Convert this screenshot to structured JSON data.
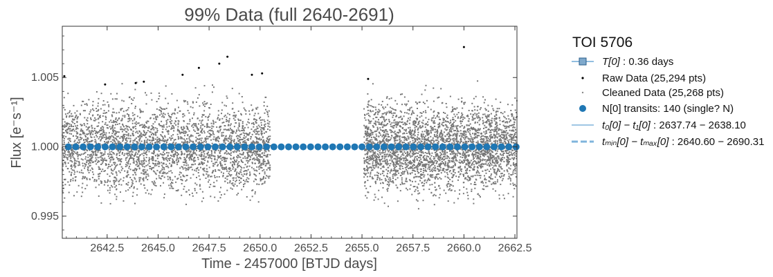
{
  "chart_data": {
    "type": "scatter",
    "title": "99% Data (full 2640-2691)",
    "xlabel": "Time - 2457000 [BTJD days]",
    "ylabel": "Flux [e⁻s⁻¹]",
    "xlim": [
      2640.3,
      2662.6
    ],
    "ylim": [
      0.9934,
      1.0087
    ],
    "x_ticks": [
      2642.5,
      2645.0,
      2647.5,
      2650.0,
      2652.5,
      2655.0,
      2657.5,
      2660.0,
      2662.5
    ],
    "x_tick_labels": [
      "2642.5",
      "2645.0",
      "2647.5",
      "2650.0",
      "2652.5",
      "2655.0",
      "2657.5",
      "2660.0",
      "2662.5"
    ],
    "y_ticks": [
      0.995,
      1.0,
      1.005
    ],
    "y_tick_labels": [
      "0.995",
      "1.000",
      "1.005"
    ],
    "grid": false,
    "legend_placement": "outside-right",
    "data_segments": [
      {
        "x_start": 2640.3,
        "x_end": 2650.5
      },
      {
        "x_start": 2655.1,
        "x_end": 2662.6
      }
    ],
    "transit_period_days": 0.36,
    "transit_first_x": 2640.6,
    "transit_flux": 1.0,
    "raw_outliers": [
      {
        "x": 2640.4,
        "y": 1.0051
      },
      {
        "x": 2642.4,
        "y": 1.0045
      },
      {
        "x": 2643.9,
        "y": 1.0046
      },
      {
        "x": 2644.3,
        "y": 1.0047
      },
      {
        "x": 2646.2,
        "y": 1.0052
      },
      {
        "x": 2647.0,
        "y": 1.0057
      },
      {
        "x": 2648.0,
        "y": 1.006
      },
      {
        "x": 2648.4,
        "y": 1.0065
      },
      {
        "x": 2649.6,
        "y": 1.0052
      },
      {
        "x": 2650.1,
        "y": 1.0053
      },
      {
        "x": 2660.0,
        "y": 1.0072
      },
      {
        "x": 2655.3,
        "y": 1.0049
      }
    ],
    "series": [
      {
        "name": "Raw Data (25,294 pts)",
        "color": "#000000"
      },
      {
        "name": "Cleaned Data (25,268 pts)",
        "color": "#777777"
      },
      {
        "name": "N[0] transits: 140 (single? N)",
        "color": "#1f77b4"
      }
    ],
    "legend": {
      "title": "TOI 5706",
      "entries": [
        {
          "kind": "line-square",
          "label_math": "T[0]",
          "label_text": " : 0.36 days"
        },
        {
          "kind": "dot-black",
          "label_text": "Raw Data (25,294 pts)"
        },
        {
          "kind": "dot-gray",
          "label_text": "Cleaned Data (25,268 pts)"
        },
        {
          "kind": "circle-blue",
          "label_text": "N[0] transits: 140 (single? N)"
        },
        {
          "kind": "solid-line",
          "label_math": "t₀[0] − t₁[0]",
          "label_text": " : 2637.74 − 2638.10"
        },
        {
          "kind": "dashed-line",
          "label_math": "tₘᵢₙ[0] − tₘₐₓ[0]",
          "label_text": " : 2640.60 − 2690.31"
        }
      ]
    }
  }
}
